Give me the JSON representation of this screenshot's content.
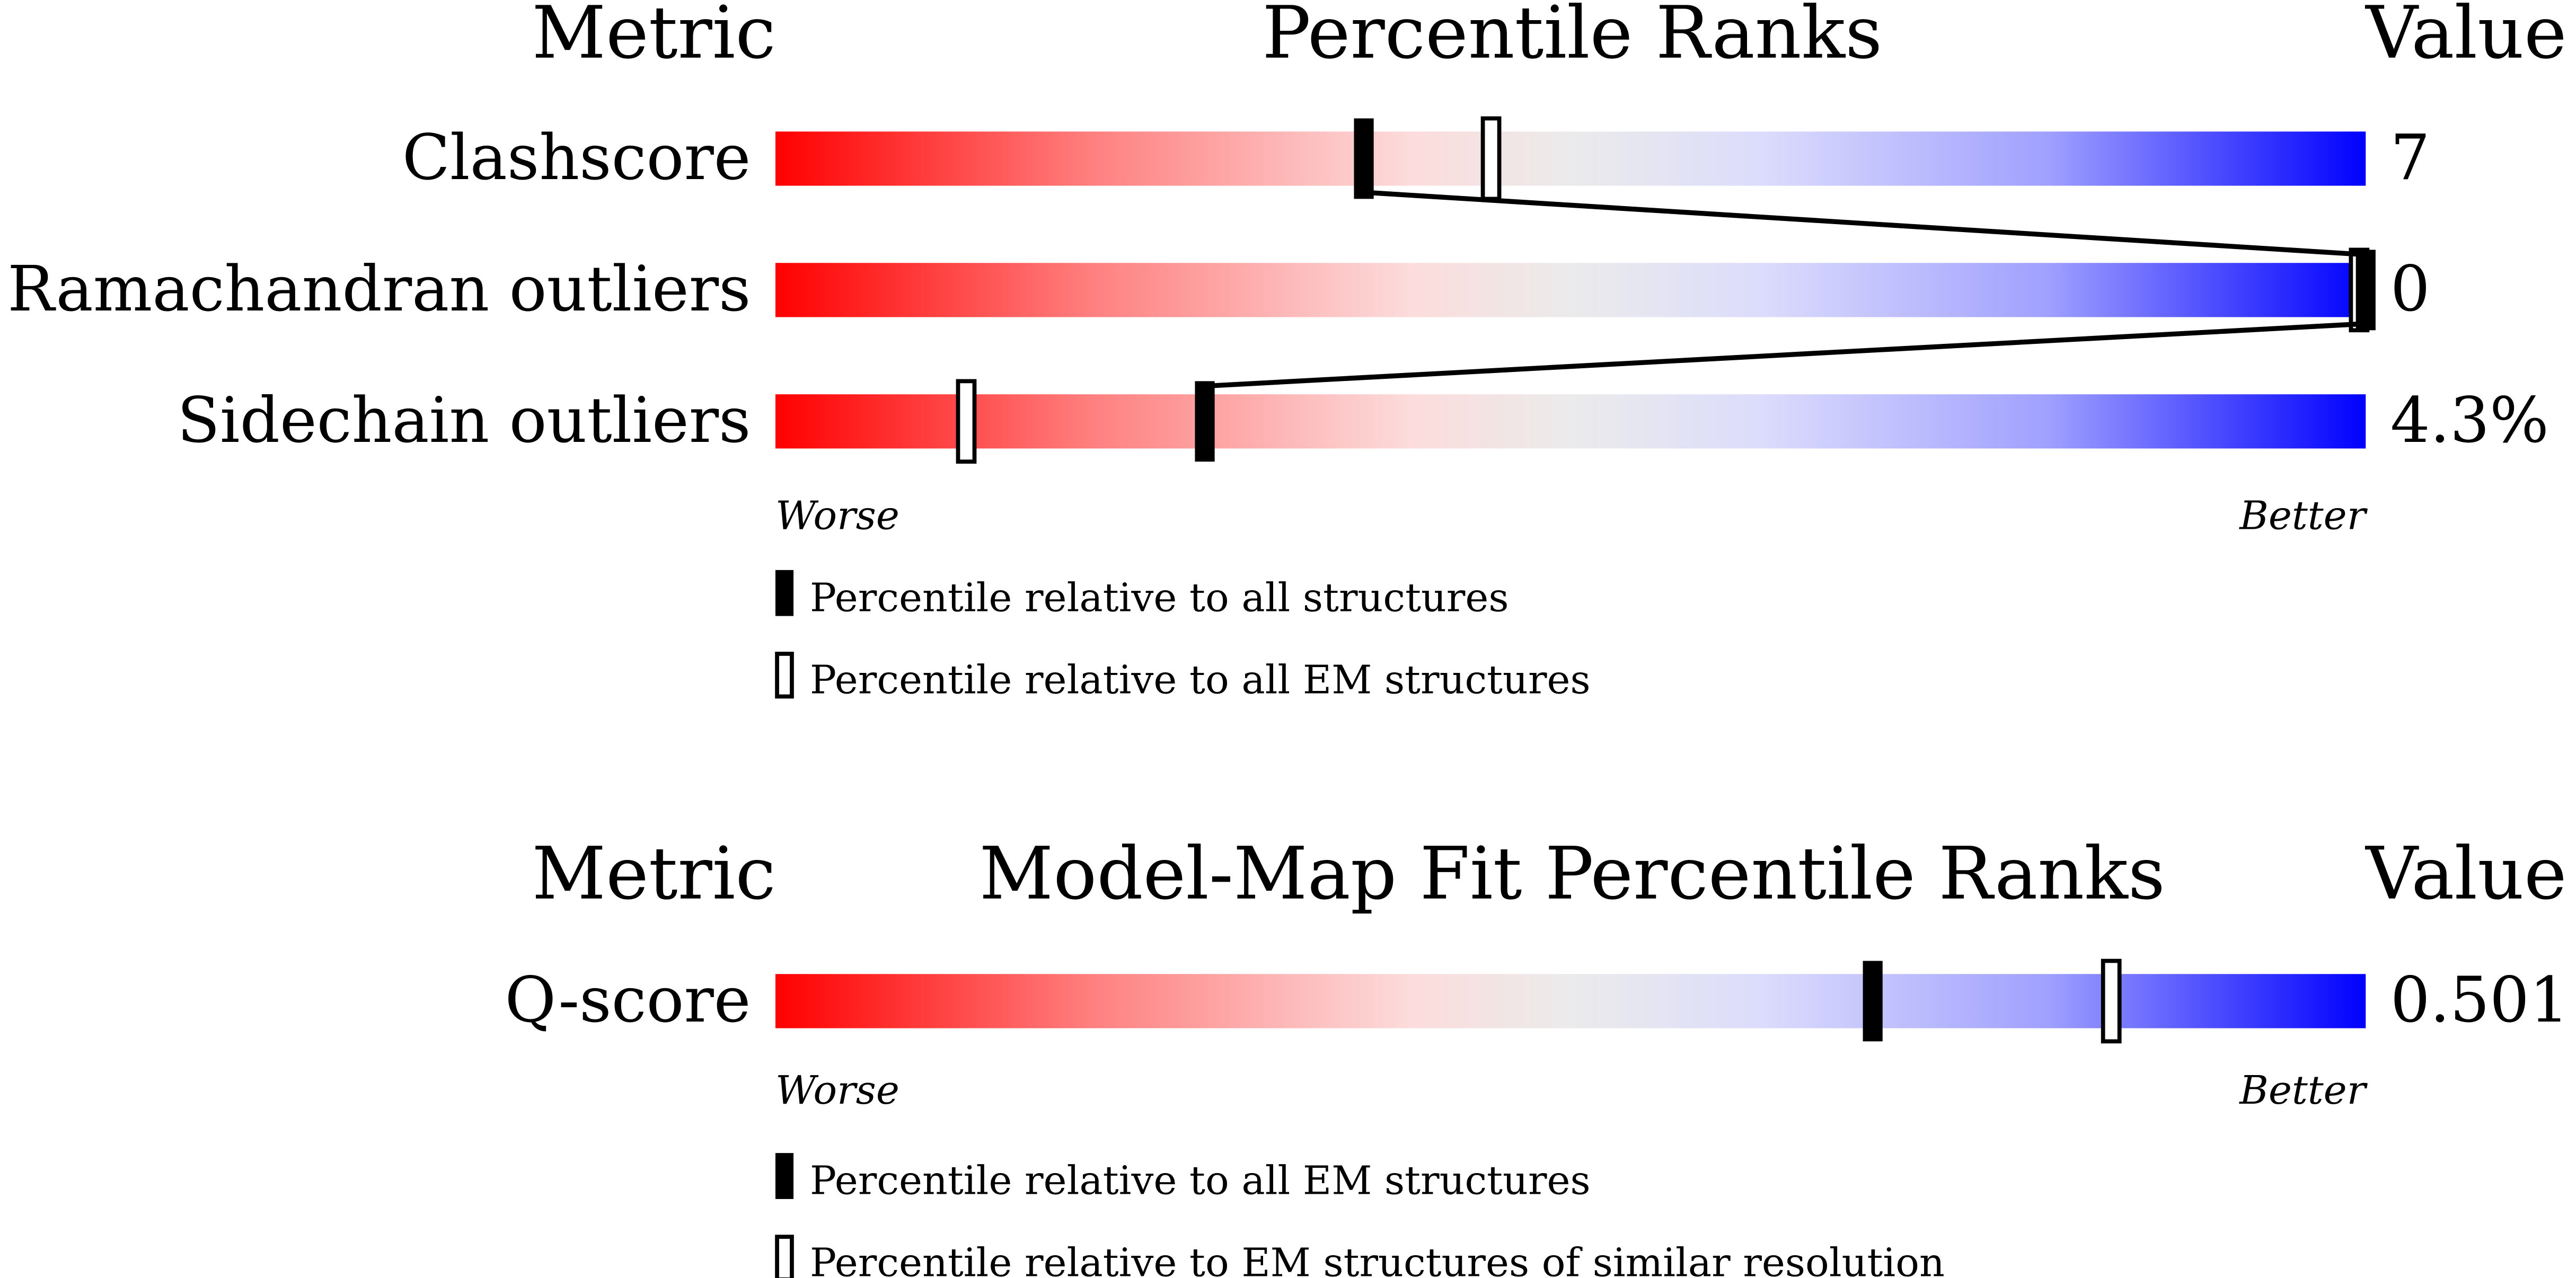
{
  "chart_data": [
    {
      "type": "bar",
      "title": "Percentile Ranks",
      "column_headers": {
        "metric": "Metric",
        "ranks": "Percentile Ranks",
        "value": "Value"
      },
      "scale": {
        "worse": "Worse",
        "better": "Better",
        "range": [
          0,
          100
        ]
      },
      "rows": [
        {
          "metric": "Clashscore",
          "value": "7",
          "percentile_all": 37,
          "percentile_em": 45
        },
        {
          "metric": "Ramachandran outliers",
          "value": "0",
          "percentile_all": 100,
          "percentile_em": 100
        },
        {
          "metric": "Sidechain outliers",
          "value": "4.3%",
          "percentile_all": 27,
          "percentile_em": 12
        }
      ],
      "legend": [
        {
          "marker": "filled",
          "label": "Percentile relative to all structures"
        },
        {
          "marker": "open",
          "label": "Percentile relative to all EM structures"
        }
      ]
    },
    {
      "type": "bar",
      "title": "Model-Map Fit Percentile Ranks",
      "column_headers": {
        "metric": "Metric",
        "ranks": "Model-Map Fit Percentile Ranks",
        "value": "Value"
      },
      "scale": {
        "worse": "Worse",
        "better": "Better",
        "range": [
          0,
          100
        ]
      },
      "rows": [
        {
          "metric": "Q-score",
          "value": "0.501",
          "percentile_all": 69,
          "percentile_em": 84
        }
      ],
      "legend": [
        {
          "marker": "filled",
          "label": "Percentile relative to all EM structures"
        },
        {
          "marker": "open",
          "label": "Percentile relative to EM structures of similar resolution"
        }
      ]
    }
  ],
  "colors": {
    "worse": "#ff0000",
    "middle": "#ebebeb",
    "better": "#0000ff",
    "marker": "#000000"
  }
}
